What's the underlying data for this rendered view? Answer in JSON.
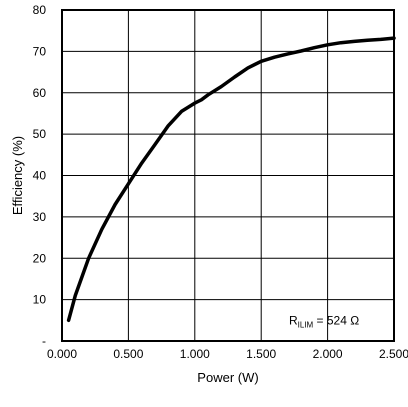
{
  "chart_data": {
    "type": "line",
    "xlabel": "Power (W)",
    "ylabel": "Efficiency (%)",
    "xlim": [
      0,
      2.5
    ],
    "ylim": [
      0,
      80
    ],
    "x_ticks": [
      0,
      0.5,
      1.0,
      1.5,
      2.0,
      2.5
    ],
    "x_tick_labels": [
      "0.000",
      "0.500",
      "1.000",
      "1.500",
      "2.000",
      "2.500"
    ],
    "y_ticks": [
      0,
      10,
      20,
      30,
      40,
      50,
      60,
      70,
      80
    ],
    "y_tick_labels": [
      "-",
      "10",
      "20",
      "30",
      "40",
      "50",
      "60",
      "70",
      "80"
    ],
    "grid": true,
    "line_color": "#000000",
    "annotation": {
      "prefix": "R",
      "subscript": "ILIM",
      "suffix": " = 524 Ω",
      "x": 1.98,
      "y": 4
    },
    "series": [
      {
        "x": [
          0.05,
          0.1,
          0.2,
          0.3,
          0.4,
          0.5,
          0.6,
          0.7,
          0.8,
          0.9,
          1.0,
          1.05,
          1.1,
          1.2,
          1.3,
          1.4,
          1.5,
          1.6,
          1.7,
          1.8,
          1.9,
          2.0,
          2.1,
          2.2,
          2.3,
          2.4,
          2.5
        ],
        "y": [
          5,
          11,
          20,
          27,
          33,
          38,
          43,
          47.5,
          52,
          55.5,
          57.5,
          58.3,
          59.5,
          61.5,
          63.8,
          66,
          67.6,
          68.6,
          69.4,
          70.1,
          70.9,
          71.6,
          72.1,
          72.4,
          72.7,
          72.9,
          73.2
        ]
      }
    ]
  }
}
